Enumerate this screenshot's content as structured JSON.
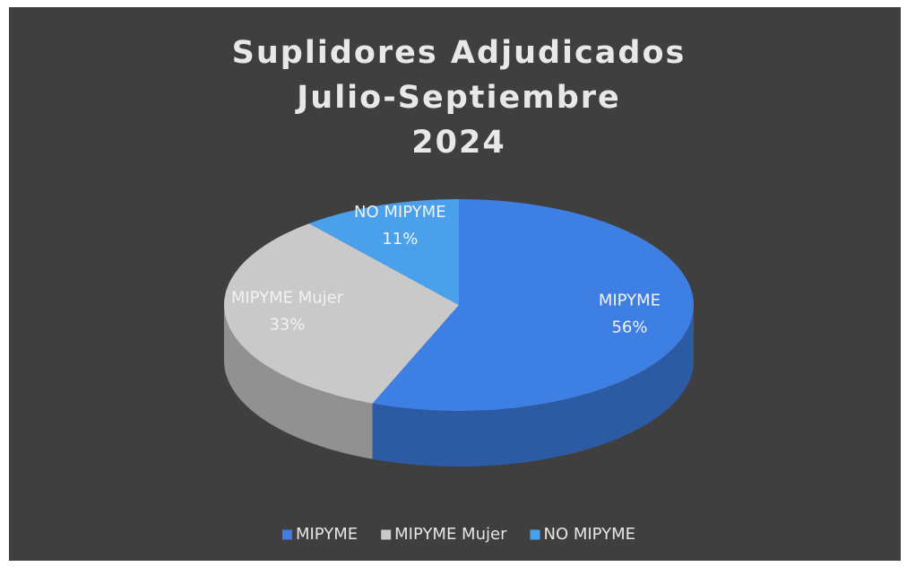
{
  "chart_data": {
    "type": "pie3d",
    "title": [
      "Suplidores Adjudicados",
      "Julio-Septiembre",
      "2024"
    ],
    "categories": [
      "MIPYME",
      "MIPYME Mujer",
      "NO MIPYME"
    ],
    "values": [
      56,
      33,
      11
    ],
    "value_labels": [
      "56%",
      "33%",
      "11%"
    ],
    "colors": [
      "#3d7fe2",
      "#c9c9c9",
      "#4aa0ea"
    ],
    "legend": "bottom"
  }
}
